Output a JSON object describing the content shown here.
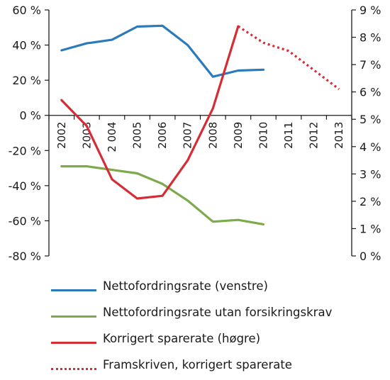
{
  "chart_data": {
    "type": "line",
    "title": "",
    "xlabel": "",
    "categories": [
      "2002",
      "2003",
      "2 004",
      "2005",
      "2006",
      "2007",
      "2008",
      "2009",
      "2010",
      "2011",
      "2012",
      "2013"
    ],
    "left_axis": {
      "ylabel": "",
      "ylim": [
        -80,
        60
      ],
      "ticks": [
        60,
        40,
        20,
        0,
        -20,
        -40,
        -60,
        -80
      ],
      "tick_labels": [
        "60 %",
        "40 %",
        "20 %",
        "0 %",
        "-20 %",
        "-40 %",
        "-60 %",
        "-80 %"
      ]
    },
    "right_axis": {
      "ylabel": "",
      "ylim": [
        0,
        9
      ],
      "ticks": [
        9,
        8,
        7,
        6,
        5,
        4,
        3,
        2,
        1,
        0
      ],
      "tick_labels": [
        "9 %",
        "8 %",
        "7 %",
        "6 %",
        "5 %",
        "4 %",
        "3 %",
        "2 %",
        "1 %",
        "0 %"
      ]
    },
    "grid": false,
    "legend_position": "bottom",
    "series": [
      {
        "name": "Nettofordringsrate (venstre)",
        "axis": "left",
        "color": "#2b7bba",
        "style": "solid",
        "x": [
          "2002",
          "2003",
          "2 004",
          "2005",
          "2006",
          "2007",
          "2008",
          "2009",
          "2010"
        ],
        "values": [
          37,
          41,
          43,
          50.5,
          51,
          40,
          22,
          25.5,
          26
        ]
      },
      {
        "name": "Nettofordringsrate utan forsikringskrav",
        "axis": "left",
        "color": "#7daa4a",
        "style": "solid",
        "x": [
          "2002",
          "2003",
          "2 004",
          "2005",
          "2006",
          "2007",
          "2008",
          "2009",
          "2010"
        ],
        "values": [
          -29,
          -29,
          -31,
          -33,
          -39,
          -48.5,
          -60.5,
          -59.5,
          -62
        ]
      },
      {
        "name": "Korrigert sparerate (høgre)",
        "axis": "right",
        "color": "#d62c35",
        "style": "solid",
        "x": [
          "2002",
          "2003",
          "2 004",
          "2005",
          "2006",
          "2007",
          "2008",
          "2009"
        ],
        "values": [
          5.7,
          4.75,
          2.8,
          2.1,
          2.2,
          3.5,
          5.4,
          8.4
        ]
      },
      {
        "name": "Framskriven, korrigert sparerate",
        "axis": "right",
        "color": "#d62c35",
        "style": "dotted",
        "x": [
          "2009",
          "2010",
          "2011",
          "2012",
          "2013"
        ],
        "values": [
          8.4,
          7.8,
          7.5,
          6.8,
          6.1
        ]
      }
    ]
  }
}
